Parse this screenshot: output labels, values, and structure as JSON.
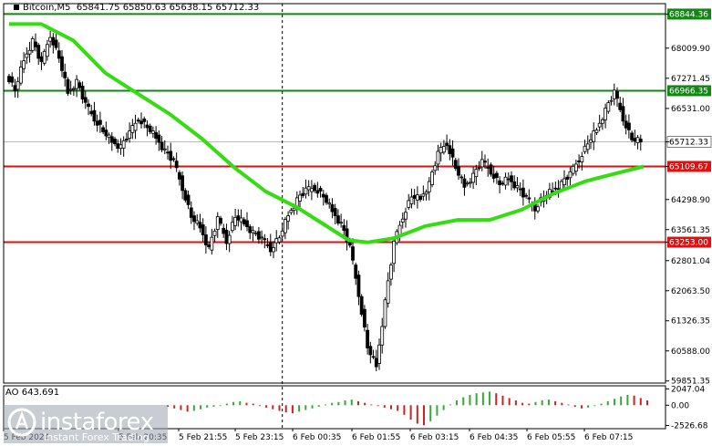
{
  "header": {
    "symbol": "Bitcoin,M5",
    "ohlc": "65841.75 65850.63 65638.15 65712.33"
  },
  "indicator": {
    "label": "AO 643.691"
  },
  "watermark": {
    "brand": "instaforex",
    "tagline": "Instant Forex Trading"
  },
  "colors": {
    "candle": "#000000",
    "ma": "#33dd11",
    "resistance": "#118811",
    "support": "#dd1111",
    "ao_up": "#33aa33",
    "ao_down": "#cc2222",
    "vline": "#000000"
  },
  "chart_data": {
    "type": "candlestick",
    "series_name": "Bitcoin,M5",
    "ylim": [
      59800,
      69100
    ],
    "y_ticks": [
      "68844.36",
      "68009.90",
      "67271.45",
      "66531.00",
      "65712.33",
      "65109.67",
      "64298.90",
      "63561.35",
      "63253.00",
      "62801.04",
      "62063.50",
      "61326.35",
      "60588.00",
      "59851.35"
    ],
    "y_tick_values": [
      68844.36,
      68009.9,
      67271.45,
      66531.0,
      65712.33,
      65109.67,
      64298.9,
      63561.35,
      63253.0,
      62801.04,
      62063.5,
      61326.35,
      60588.0,
      59851.35
    ],
    "x_tick_labels": [
      "5 Feb 2024",
      "5 Feb 20:35",
      "5 Feb 21:55",
      "5 Feb 23:15",
      "6 Feb 00:35",
      "6 Feb 01:55",
      "6 Feb 03:15",
      "6 Feb 04:35",
      "6 Feb 05:55",
      "6 Feb 07:15"
    ],
    "horizontal_lines": [
      {
        "value": 68844.36,
        "label": "68844.36",
        "kind": "resistance"
      },
      {
        "value": 66966.35,
        "label": "66966.35",
        "kind": "resistance"
      },
      {
        "value": 65712.33,
        "label": "65712.33",
        "kind": "current"
      },
      {
        "value": 65109.67,
        "label": "65109.67",
        "kind": "support"
      },
      {
        "value": 63253.0,
        "label": "63253.00",
        "kind": "support"
      }
    ],
    "vertical_line_after_label": "5 Feb 23:15",
    "price_path": [
      [
        0,
        67400
      ],
      [
        1,
        67000
      ],
      [
        2,
        67700
      ],
      [
        3,
        68200
      ],
      [
        4,
        67600
      ],
      [
        5,
        68350
      ],
      [
        6,
        67800
      ],
      [
        7,
        66900
      ],
      [
        8,
        67200
      ],
      [
        9,
        66600
      ],
      [
        10,
        66300
      ],
      [
        11,
        66000
      ],
      [
        12,
        65700
      ],
      [
        13,
        65600
      ],
      [
        14,
        65900
      ],
      [
        15,
        66300
      ],
      [
        16,
        66100
      ],
      [
        17,
        65800
      ],
      [
        18,
        65500
      ],
      [
        19,
        65200
      ],
      [
        20,
        64600
      ],
      [
        21,
        63900
      ],
      [
        22,
        63600
      ],
      [
        23,
        63100
      ],
      [
        24,
        63800
      ],
      [
        25,
        63300
      ],
      [
        26,
        63900
      ],
      [
        27,
        63700
      ],
      [
        28,
        63500
      ],
      [
        29,
        63300
      ],
      [
        30,
        63100
      ],
      [
        31,
        63400
      ],
      [
        32,
        63900
      ],
      [
        33,
        64300
      ],
      [
        34,
        64500
      ],
      [
        35,
        64600
      ],
      [
        36,
        64400
      ],
      [
        37,
        64000
      ],
      [
        38,
        63700
      ],
      [
        39,
        63100
      ],
      [
        40,
        62000
      ],
      [
        41,
        60700
      ],
      [
        42,
        60200
      ],
      [
        43,
        61800
      ],
      [
        44,
        63200
      ],
      [
        45,
        63900
      ],
      [
        46,
        64400
      ],
      [
        47,
        64300
      ],
      [
        48,
        64700
      ],
      [
        49,
        65400
      ],
      [
        50,
        65700
      ],
      [
        51,
        65100
      ],
      [
        52,
        64600
      ],
      [
        53,
        64900
      ],
      [
        54,
        65200
      ],
      [
        55,
        65000
      ],
      [
        56,
        64700
      ],
      [
        57,
        64800
      ],
      [
        58,
        64600
      ],
      [
        59,
        64300
      ],
      [
        60,
        64100
      ],
      [
        61,
        64400
      ],
      [
        62,
        64500
      ],
      [
        63,
        64700
      ],
      [
        64,
        64900
      ],
      [
        65,
        65300
      ],
      [
        66,
        65700
      ],
      [
        67,
        66000
      ],
      [
        68,
        66500
      ],
      [
        69,
        66900
      ],
      [
        70,
        66300
      ],
      [
        71,
        65800
      ],
      [
        72,
        65710
      ]
    ],
    "ma_path": [
      [
        0,
        68600
      ],
      [
        5,
        68600
      ],
      [
        10,
        68200
      ],
      [
        15,
        67400
      ],
      [
        20,
        66900
      ],
      [
        25,
        66400
      ],
      [
        30,
        65800
      ],
      [
        35,
        65100
      ],
      [
        40,
        64500
      ],
      [
        45,
        64100
      ],
      [
        50,
        63600
      ],
      [
        53,
        63300
      ],
      [
        56,
        63250
      ],
      [
        60,
        63350
      ],
      [
        65,
        63650
      ],
      [
        70,
        63800
      ],
      [
        75,
        63800
      ],
      [
        80,
        64050
      ],
      [
        85,
        64450
      ],
      [
        90,
        64750
      ],
      [
        95,
        64950
      ],
      [
        99,
        65109
      ]
    ],
    "ao": {
      "label": "AO 643.691",
      "y_ticks": [
        "2047.04",
        "0.00",
        "-2526.68"
      ],
      "y_tick_values": [
        2047.04,
        0,
        -2526.68
      ],
      "values": [
        -200,
        -400,
        -600,
        -800,
        -700,
        -500,
        -300,
        -200,
        -100,
        200,
        400,
        500,
        300,
        200,
        -100,
        -300,
        -500,
        -700,
        -900,
        -1000,
        -800,
        -600,
        -400,
        -200,
        100,
        300,
        400,
        600,
        700,
        500,
        300,
        100,
        -100,
        -300,
        -500,
        -700,
        -1200,
        -1800,
        -2300,
        -2500,
        -2000,
        -1300,
        -600,
        100,
        600,
        1000,
        1300,
        1500,
        1600,
        1700,
        1500,
        1200,
        900,
        600,
        300,
        200,
        400,
        600,
        700,
        500,
        300,
        100,
        -200,
        -400,
        -300,
        -100,
        200,
        500,
        800,
        1100,
        1300,
        1200,
        900,
        600
      ]
    }
  }
}
